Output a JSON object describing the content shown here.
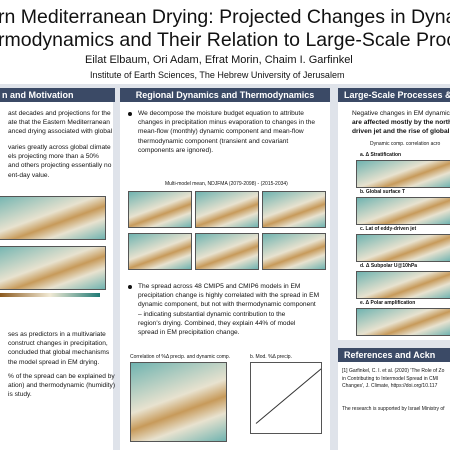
{
  "header": {
    "title_lines": [
      "rn Mediterranean Drying: Projected Changes in Dynamic",
      "rmodynamics and Their Relation to Large-Scale Process"
    ],
    "authors": "Eilat Elbaum, Ori Adam, Efrat Morin, Chaim I. Garfinkel",
    "affiliation": "Institute of Earth Sciences, The Hebrew University of Jerusalem"
  },
  "left": {
    "heading": "n and Motivation",
    "paragraphs": [
      [
        "ast decades and projections for the",
        "ate that the Eastern Mediterranean",
        "anced drying associated with global"
      ],
      [
        "varies greatly across global climate",
        "els projecting more than a 50%",
        "and others projecting essentially no",
        "ent-day value."
      ],
      [
        "ses as predictors in a multivariate",
        "construct changes in precipitation,",
        "concluded that global mechanisms",
        "the model spread in EM drying."
      ],
      [
        "% of the spread can be explained by",
        "ation) and thermodynamic (humidity)",
        "is study."
      ]
    ]
  },
  "middle": {
    "heading": "Regional Dynamics and Thermodynamics",
    "paragraphs": [
      [
        "We decompose the moisture budget equation to attribute",
        "changes in precipitation minus evaporation to changes in the",
        "mean-flow (monthly) dynamic component and mean-flow",
        "thermodynamic component (transient and covariant",
        "components are ignored)."
      ],
      [
        "The spread across 48 CMIP5 and CMIP6 models in EM",
        "precipitation change is highly correlated with the spread in EM",
        "dynamic component, but not with thermodynamic component",
        "– indicating substantial dynamic contribution to the",
        "region's drying. Combined, they explain 44% of model",
        "spread in EM precipitation change."
      ]
    ],
    "figure_caption": "Multi-model mean, NDJFMA (2079-2098) - (2015-2034)",
    "figure2_titles": [
      "Correlation of %Δ precip. and dynamic comp.",
      "b. Mod. %Δ precip."
    ]
  },
  "right": {
    "heading": "Large-Scale Processes &",
    "paragraphs": [
      [
        "Negative changes in EM dynamic",
        "are affected mostly by the north",
        "driven jet and the rise of global"
      ]
    ],
    "figure_caption": "Dynamic comp. correlation acro",
    "panels": [
      "a. Δ Stratification",
      "b. Global surface T",
      "c. Lat of eddy-driven jet",
      "d. Δ Subpolar U@10hPa",
      "e. Δ Polar amplification"
    ]
  },
  "references": {
    "heading": "References and Ackn",
    "lines": [
      "[1] Garfinkel, C. I. et al. (2020) 'The Role of Zo",
      "in Contributing to Intermodel Spread in CMI",
      "Changes', J. Climate, https://doi.org/10.117"
    ],
    "acknowledgement": "The research is supported by Israel Ministry of"
  }
}
